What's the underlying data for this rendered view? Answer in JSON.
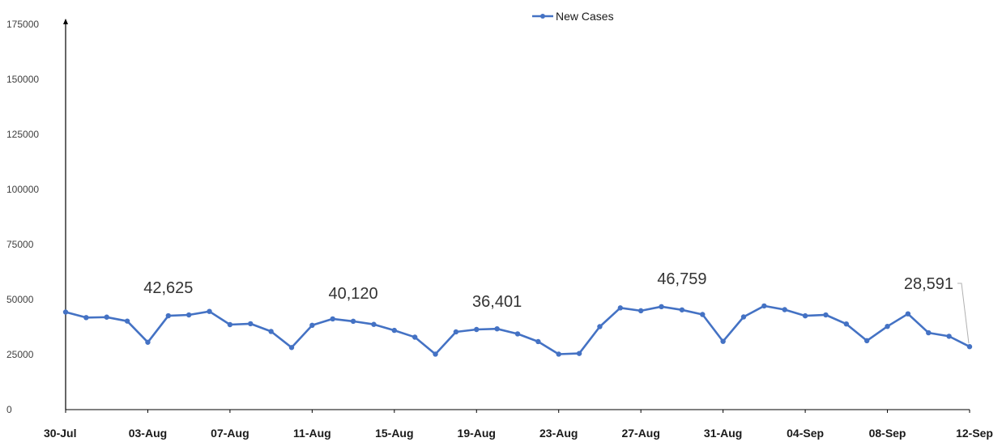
{
  "chart_data": {
    "type": "line",
    "title": "",
    "xlabel": "",
    "ylabel": "",
    "ylim": [
      0,
      175000
    ],
    "y_ticks": [
      0,
      25000,
      50000,
      75000,
      100000,
      125000,
      150000,
      175000
    ],
    "y_tick_labels": [
      "0",
      "25000",
      "50000",
      "75000",
      "100000",
      "125000",
      "150000",
      "175000"
    ],
    "x": [
      "30-Jul",
      "31-Jul",
      "01-Aug",
      "02-Aug",
      "03-Aug",
      "04-Aug",
      "05-Aug",
      "06-Aug",
      "07-Aug",
      "08-Aug",
      "09-Aug",
      "10-Aug",
      "11-Aug",
      "12-Aug",
      "13-Aug",
      "14-Aug",
      "15-Aug",
      "16-Aug",
      "17-Aug",
      "18-Aug",
      "19-Aug",
      "20-Aug",
      "21-Aug",
      "22-Aug",
      "23-Aug",
      "24-Aug",
      "25-Aug",
      "26-Aug",
      "27-Aug",
      "28-Aug",
      "29-Aug",
      "30-Aug",
      "31-Aug",
      "01-Sep",
      "02-Sep",
      "03-Sep",
      "04-Sep",
      "05-Sep",
      "06-Sep",
      "07-Sep",
      "08-Sep",
      "09-Sep",
      "10-Sep",
      "11-Sep",
      "12-Sep"
    ],
    "x_tick_labels": [
      "30-Jul",
      "03-Aug",
      "07-Aug",
      "11-Aug",
      "15-Aug",
      "19-Aug",
      "23-Aug",
      "27-Aug",
      "31-Aug",
      "04-Sep",
      "08-Sep",
      "12-Sep"
    ],
    "series": [
      {
        "name": "New Cases",
        "color": "#4472c4",
        "values": [
          44300,
          41800,
          42000,
          40200,
          30600,
          42625,
          43000,
          44600,
          38600,
          39000,
          35500,
          28200,
          38300,
          41200,
          40120,
          38700,
          36000,
          32900,
          25200,
          35300,
          36401,
          36700,
          34400,
          30900,
          25200,
          25500,
          37700,
          46200,
          44900,
          46759,
          45300,
          43200,
          31000,
          42100,
          47100,
          45400,
          42600,
          43000,
          38900,
          31300,
          37800,
          43500,
          34900,
          33300,
          28591
        ]
      }
    ],
    "annotations": [
      {
        "label": "42,625",
        "x": "04-Aug",
        "y": 42625
      },
      {
        "label": "40,120",
        "x": "13-Aug",
        "y": 40120
      },
      {
        "label": "36,401",
        "x": "20-Aug",
        "y": 36401
      },
      {
        "label": "46,759",
        "x": "29-Aug",
        "y": 46759
      },
      {
        "label": "28,591",
        "x": "12-Sep",
        "y": 28591
      }
    ],
    "legend_position": "top-center",
    "grid": false
  }
}
